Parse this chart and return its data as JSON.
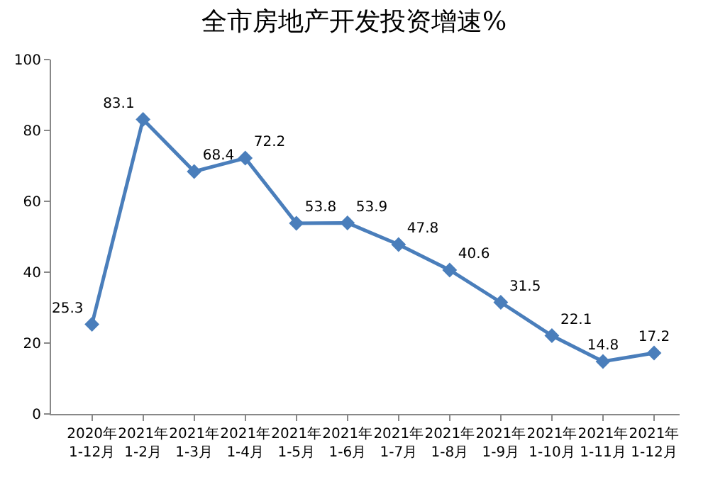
{
  "chart_data": {
    "type": "line",
    "title": "全市房地产开发投资增速%",
    "categories": [
      "2020年\n1-12月",
      "2021年\n1-2月",
      "2021年\n1-3月",
      "2021年\n1-4月",
      "2021年\n1-5月",
      "2021年\n1-6月",
      "2021年\n1-7月",
      "2021年\n1-8月",
      "2021年\n1-9月",
      "2021年\n1-10月",
      "2021年\n1-11月",
      "2021年\n1-12月"
    ],
    "values": [
      25.3,
      83.1,
      68.4,
      72.2,
      53.8,
      53.9,
      47.8,
      40.6,
      31.5,
      22.1,
      14.8,
      17.2
    ],
    "color": "#4a7ebb",
    "marker": "diamond",
    "data_labels": true,
    "ylim": [
      0,
      100
    ],
    "yticks": [
      0,
      20,
      40,
      60,
      80,
      100
    ],
    "grid": false,
    "legend": false
  }
}
